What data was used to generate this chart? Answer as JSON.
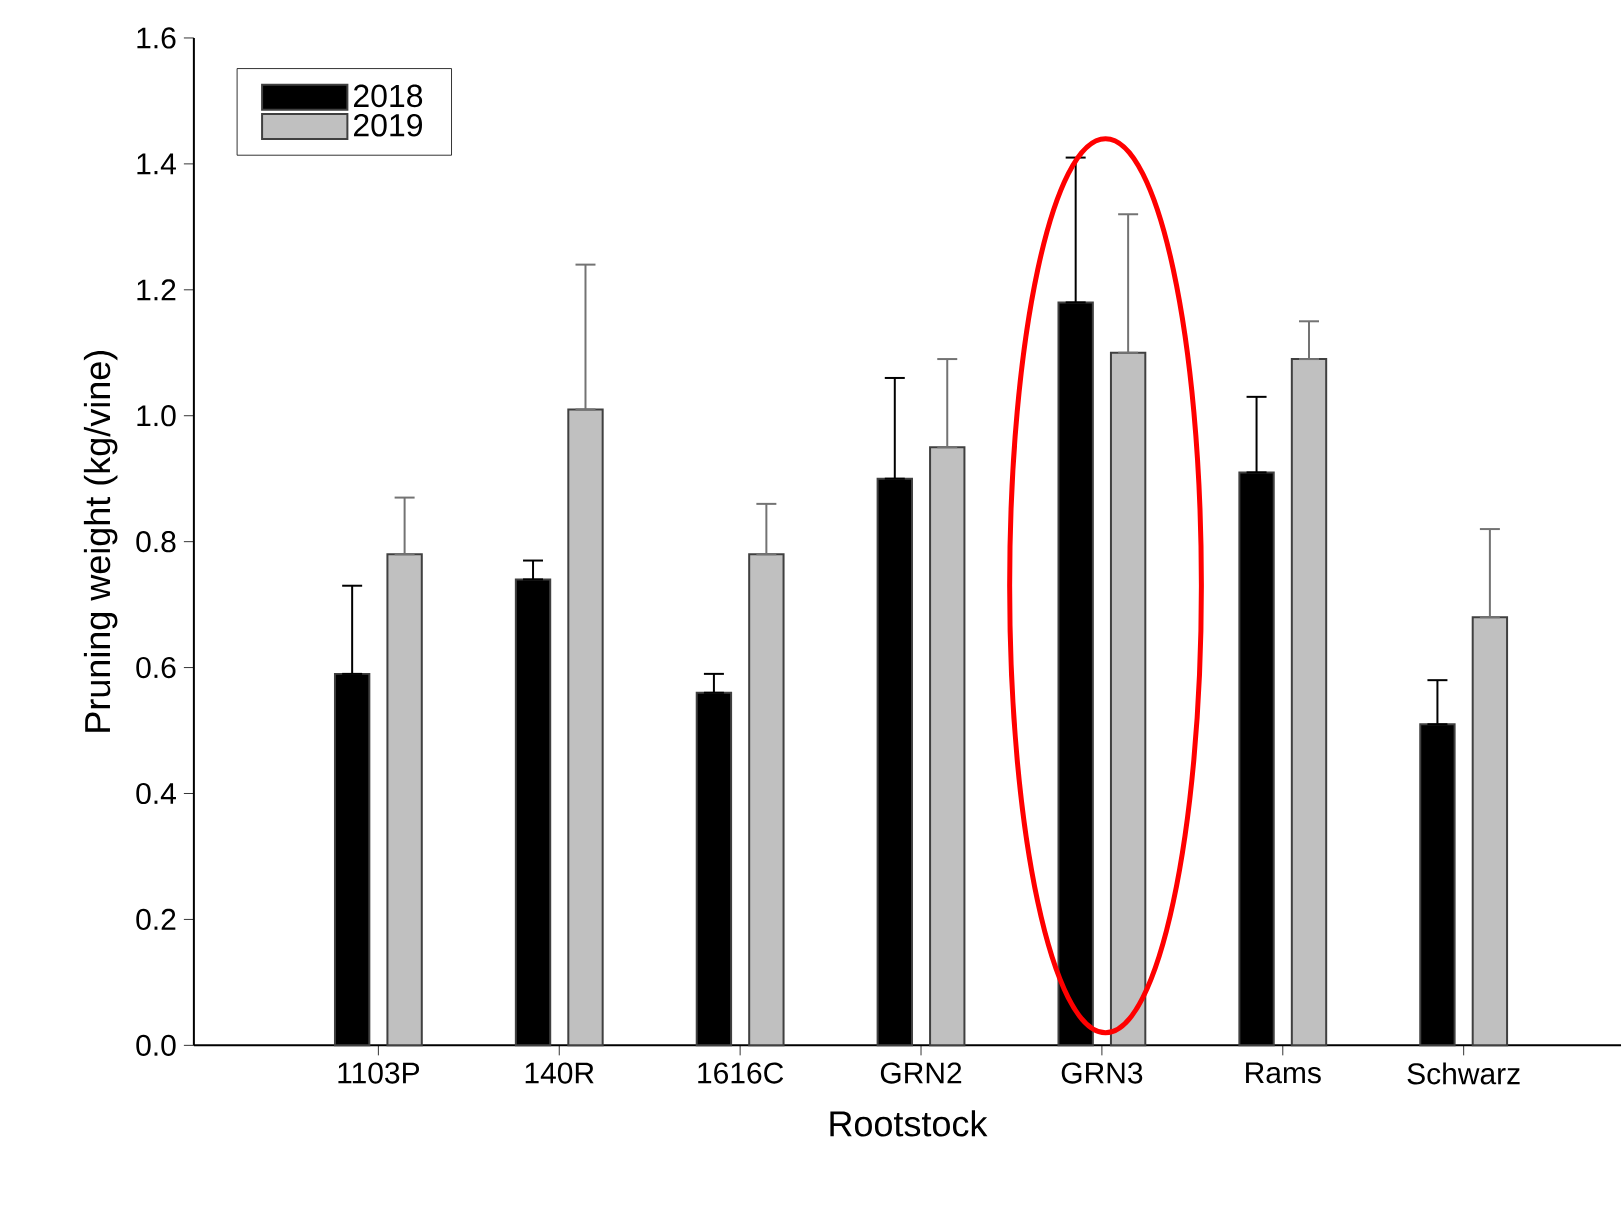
{
  "chart_data": {
    "type": "bar",
    "xlabel": "Rootstock",
    "ylabel": "Pruning weight (kg/vine)",
    "categories": [
      "1103P",
      "140R",
      "1616C",
      "GRN2",
      "GRN3",
      "Rams",
      "Schwarz"
    ],
    "series": [
      {
        "name": "2018",
        "color": "#000000",
        "values": [
          0.59,
          0.74,
          0.56,
          0.9,
          1.18,
          0.91,
          0.51
        ],
        "errors": [
          [
            0.59,
            0.73
          ],
          [
            0.74,
            0.77
          ],
          [
            0.56,
            0.59
          ],
          [
            0.9,
            1.06
          ],
          [
            1.18,
            1.41
          ],
          [
            0.91,
            1.03
          ],
          [
            0.51,
            0.58
          ]
        ]
      },
      {
        "name": "2019",
        "color": "#c0c0c0",
        "values": [
          0.78,
          1.01,
          0.78,
          0.95,
          1.1,
          1.09,
          0.68
        ],
        "errors": [
          [
            0.78,
            0.87
          ],
          [
            1.01,
            1.24
          ],
          [
            0.78,
            0.86
          ],
          [
            0.95,
            1.09
          ],
          [
            1.1,
            1.32
          ],
          [
            1.09,
            1.15
          ],
          [
            0.68,
            0.82
          ]
        ]
      }
    ],
    "ylim": [
      0,
      1.6
    ],
    "yticks": [
      {
        "value": 0,
        "label": "0.0"
      },
      {
        "value": 0.2,
        "label": "0.2"
      },
      {
        "value": 0.4,
        "label": "0.4"
      },
      {
        "value": 0.6,
        "label": "0.6"
      },
      {
        "value": 0.8,
        "label": "0.8"
      },
      {
        "value": 1.0,
        "label": "1.0"
      },
      {
        "value": 1.2,
        "label": "1.2"
      },
      {
        "value": 1.4,
        "label": "1.4"
      },
      {
        "value": 1.6,
        "label": "1.6"
      }
    ],
    "grid": false,
    "legend": "top left"
  }
}
